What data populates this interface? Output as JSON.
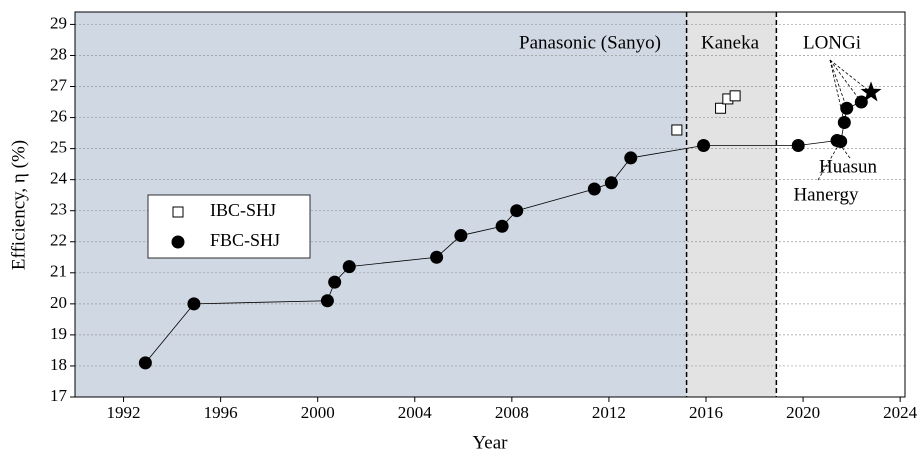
{
  "chart_data": {
    "type": "scatter",
    "x_label": "Year",
    "y_label": "Efficiency, η (%)",
    "xlim": [
      1990,
      2024.2
    ],
    "ylim": [
      17,
      29.4
    ],
    "xticks": [
      1992,
      1996,
      2000,
      2004,
      2008,
      2012,
      2016,
      2020,
      2024
    ],
    "yticks": [
      17,
      18,
      19,
      20,
      21,
      22,
      23,
      24,
      25,
      26,
      27,
      28,
      29
    ],
    "grid": true,
    "regions": [
      {
        "name": "Panasonic (Sanyo)",
        "from": 1990,
        "to": 2015.2,
        "color": "#cfd8e3"
      },
      {
        "name": "Kaneka",
        "from": 2015.2,
        "to": 2018.9,
        "color": "#e3e3e3"
      },
      {
        "name": "LONGi",
        "from": 2018.9,
        "to": 2024.2,
        "color": "#ffffff"
      }
    ],
    "series": [
      {
        "name": "IBC-SHJ",
        "marker": "open-square",
        "color": "#000000",
        "x": [
          2014.8,
          2016.6,
          2016.9,
          2017.2
        ],
        "values": [
          25.6,
          26.3,
          26.6,
          26.7
        ]
      },
      {
        "name": "FBC-SHJ",
        "marker": "filled-circle",
        "color": "#000000",
        "x": [
          1992.9,
          1994.9,
          2000.4,
          2000.7,
          2001.3,
          2004.9,
          2005.9,
          2007.6,
          2008.2,
          2011.4,
          2012.1,
          2012.9,
          2015.9,
          2019.8,
          2021.4,
          2021.55,
          2021.7,
          2021.8,
          2022.4
        ],
        "values": [
          18.1,
          20.0,
          20.1,
          20.7,
          21.2,
          21.5,
          22.2,
          22.5,
          23.0,
          23.7,
          23.9,
          24.7,
          25.1,
          25.1,
          25.26,
          25.23,
          25.84,
          26.3,
          26.5
        ]
      }
    ],
    "star": {
      "x": 2022.8,
      "y": 26.81
    },
    "annotations": [
      "Huasun",
      "Hanergy"
    ]
  }
}
